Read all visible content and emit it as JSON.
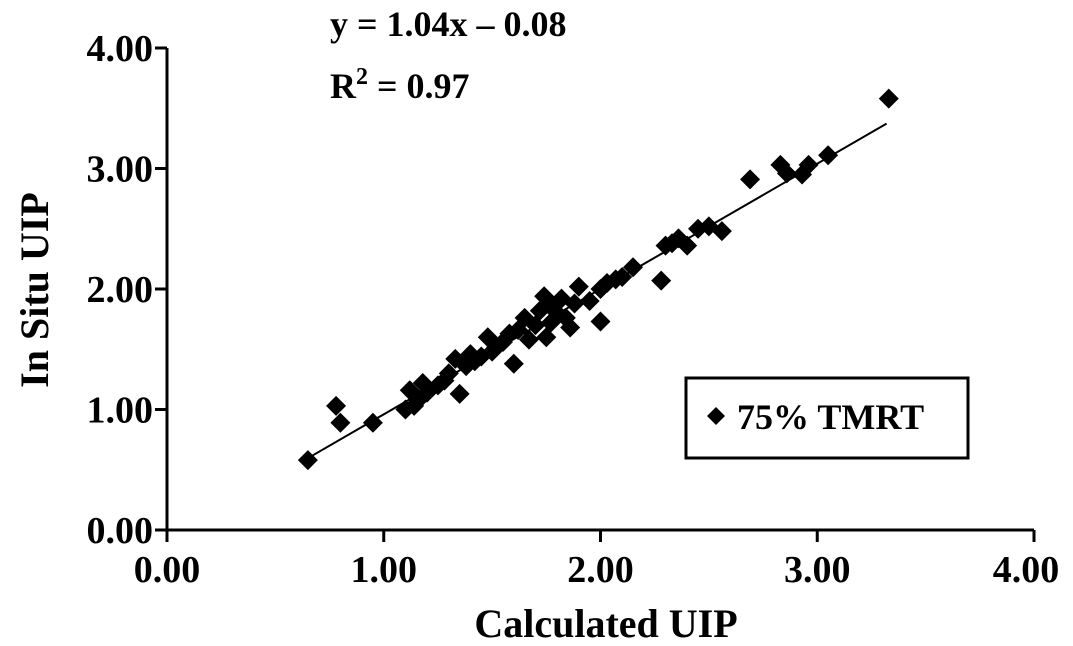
{
  "chart_data": {
    "type": "scatter",
    "xlabel": "Calculated UIP",
    "ylabel": "In Situ UIP",
    "xlim": [
      0,
      4
    ],
    "ylim": [
      0,
      4
    ],
    "xticks": [
      "0.00",
      "1.00",
      "2.00",
      "3.00",
      "4.00"
    ],
    "yticks": [
      "0.00",
      "1.00",
      "2.00",
      "3.00",
      "4.00"
    ],
    "grid": false,
    "legend_position": "lower-right",
    "annotation": {
      "equation": "y = 1.04x – 0.08",
      "r2_prefix": "R",
      "r2_sup": "2",
      "r2_value": " = 0.97"
    },
    "trendline": {
      "slope": 1.04,
      "intercept": -0.08,
      "x_range": [
        0.65,
        3.32
      ]
    },
    "series": [
      {
        "name": "75% TMRT",
        "marker": "diamond",
        "color": "#000000",
        "points": [
          [
            0.65,
            0.58
          ],
          [
            0.78,
            1.03
          ],
          [
            0.8,
            0.89
          ],
          [
            0.95,
            0.89
          ],
          [
            1.1,
            1.0
          ],
          [
            1.12,
            1.16
          ],
          [
            1.14,
            1.03
          ],
          [
            1.16,
            1.08
          ],
          [
            1.18,
            1.22
          ],
          [
            1.2,
            1.14
          ],
          [
            1.25,
            1.2
          ],
          [
            1.28,
            1.24
          ],
          [
            1.3,
            1.3
          ],
          [
            1.33,
            1.42
          ],
          [
            1.35,
            1.13
          ],
          [
            1.38,
            1.36
          ],
          [
            1.4,
            1.46
          ],
          [
            1.42,
            1.4
          ],
          [
            1.45,
            1.44
          ],
          [
            1.48,
            1.6
          ],
          [
            1.5,
            1.48
          ],
          [
            1.52,
            1.52
          ],
          [
            1.55,
            1.56
          ],
          [
            1.58,
            1.63
          ],
          [
            1.6,
            1.38
          ],
          [
            1.62,
            1.66
          ],
          [
            1.65,
            1.76
          ],
          [
            1.67,
            1.58
          ],
          [
            1.7,
            1.7
          ],
          [
            1.72,
            1.82
          ],
          [
            1.74,
            1.94
          ],
          [
            1.75,
            1.6
          ],
          [
            1.77,
            1.72
          ],
          [
            1.78,
            1.86
          ],
          [
            1.8,
            1.8
          ],
          [
            1.82,
            1.92
          ],
          [
            1.84,
            1.76
          ],
          [
            1.86,
            1.68
          ],
          [
            1.88,
            1.88
          ],
          [
            1.9,
            2.02
          ],
          [
            1.95,
            1.9
          ],
          [
            2.0,
            1.73
          ],
          [
            2.0,
            2.0
          ],
          [
            2.03,
            2.05
          ],
          [
            2.07,
            2.08
          ],
          [
            2.1,
            2.1
          ],
          [
            2.15,
            2.18
          ],
          [
            2.28,
            2.07
          ],
          [
            2.3,
            2.36
          ],
          [
            2.33,
            2.38
          ],
          [
            2.36,
            2.42
          ],
          [
            2.4,
            2.36
          ],
          [
            2.45,
            2.5
          ],
          [
            2.5,
            2.52
          ],
          [
            2.56,
            2.48
          ],
          [
            2.69,
            2.91
          ],
          [
            2.83,
            3.03
          ],
          [
            2.86,
            2.96
          ],
          [
            2.93,
            2.95
          ],
          [
            2.96,
            3.03
          ],
          [
            3.05,
            3.11
          ],
          [
            3.33,
            3.58
          ]
        ]
      }
    ]
  }
}
